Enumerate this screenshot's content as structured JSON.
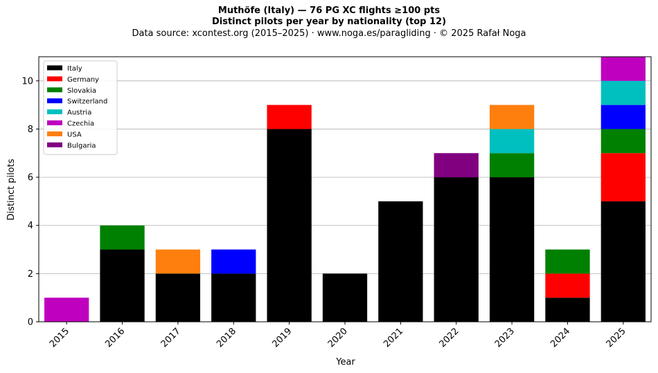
{
  "chart_data": {
    "type": "bar",
    "stacked": true,
    "title": "Muthöfe (Italy)  —  76 PG XC flights ≥100 pts",
    "subtitle": "Distinct pilots per year by nationality (top 12)",
    "source": "Data source: xcontest.org (2015–2025)  ·  www.noga.es/paragliding  ·  © 2025 Rafał Noga",
    "xlabel": "Year",
    "ylabel": "Distinct pilots",
    "ylim": [
      0,
      11
    ],
    "yticks": [
      0,
      2,
      4,
      6,
      8,
      10
    ],
    "grid": "y",
    "legend_position": "top-left",
    "categories": [
      "2015",
      "2016",
      "2017",
      "2018",
      "2019",
      "2020",
      "2021",
      "2022",
      "2023",
      "2024",
      "2025"
    ],
    "series": [
      {
        "name": "Italy",
        "color": "#000000",
        "values": [
          0,
          3,
          2,
          2,
          8,
          2,
          5,
          6,
          6,
          1,
          5
        ]
      },
      {
        "name": "Germany",
        "color": "#ff0000",
        "values": [
          0,
          0,
          0,
          0,
          1,
          0,
          0,
          0,
          0,
          1,
          2
        ]
      },
      {
        "name": "Slovakia",
        "color": "#008000",
        "values": [
          0,
          1,
          0,
          0,
          0,
          0,
          0,
          0,
          1,
          1,
          1
        ]
      },
      {
        "name": "Switzerland",
        "color": "#0000ff",
        "values": [
          0,
          0,
          0,
          1,
          0,
          0,
          0,
          0,
          0,
          0,
          1
        ]
      },
      {
        "name": "Austria",
        "color": "#00bfbf",
        "values": [
          0,
          0,
          0,
          0,
          0,
          0,
          0,
          0,
          1,
          0,
          1
        ]
      },
      {
        "name": "Czechia",
        "color": "#bf00bf",
        "values": [
          1,
          0,
          0,
          0,
          0,
          0,
          0,
          0,
          0,
          0,
          1
        ]
      },
      {
        "name": "USA",
        "color": "#ff7f0e",
        "values": [
          0,
          0,
          1,
          0,
          0,
          0,
          0,
          0,
          1,
          0,
          0
        ]
      },
      {
        "name": "Bulgaria",
        "color": "#800080",
        "values": [
          0,
          0,
          0,
          0,
          0,
          0,
          0,
          1,
          0,
          0,
          0
        ]
      }
    ]
  }
}
